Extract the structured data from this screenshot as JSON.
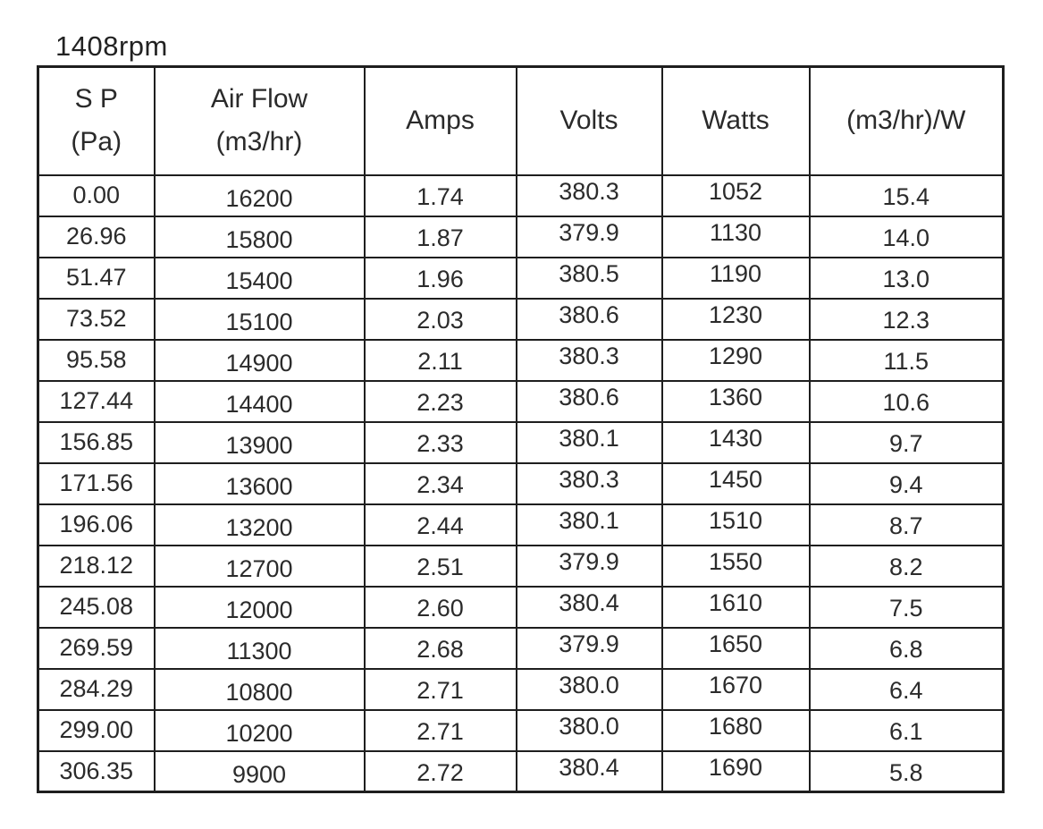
{
  "title": "1408rpm",
  "colors": {
    "background": "#ffffff",
    "border": "#1e1e1e",
    "text": "#2a2a2a"
  },
  "table": {
    "headers": [
      {
        "line1": "S P",
        "line2": "(Pa)"
      },
      {
        "line1": "Air Flow",
        "line2": "(m3/hr)"
      },
      {
        "line1": "Amps",
        "line2": ""
      },
      {
        "line1": "Volts",
        "line2": ""
      },
      {
        "line1": "Watts",
        "line2": ""
      },
      {
        "line1": "(m3/hr)/W",
        "line2": ""
      }
    ],
    "rows": [
      [
        "0.00",
        "16200",
        "1.74",
        "380.3",
        "1052",
        "15.4"
      ],
      [
        "26.96",
        "15800",
        "1.87",
        "379.9",
        "1130",
        "14.0"
      ],
      [
        "51.47",
        "15400",
        "1.96",
        "380.5",
        "1190",
        "13.0"
      ],
      [
        "73.52",
        "15100",
        "2.03",
        "380.6",
        "1230",
        "12.3"
      ],
      [
        "95.58",
        "14900",
        "2.11",
        "380.3",
        "1290",
        "11.5"
      ],
      [
        "127.44",
        "14400",
        "2.23",
        "380.6",
        "1360",
        "10.6"
      ],
      [
        "156.85",
        "13900",
        "2.33",
        "380.1",
        "1430",
        "9.7"
      ],
      [
        "171.56",
        "13600",
        "2.34",
        "380.3",
        "1450",
        "9.4"
      ],
      [
        "196.06",
        "13200",
        "2.44",
        "380.1",
        "1510",
        "8.7"
      ],
      [
        "218.12",
        "12700",
        "2.51",
        "379.9",
        "1550",
        "8.2"
      ],
      [
        "245.08",
        "12000",
        "2.60",
        "380.4",
        "1610",
        "7.5"
      ],
      [
        "269.59",
        "11300",
        "2.68",
        "379.9",
        "1650",
        "6.8"
      ],
      [
        "284.29",
        "10800",
        "2.71",
        "380.0",
        "1670",
        "6.4"
      ],
      [
        "299.00",
        "10200",
        "2.71",
        "380.0",
        "1680",
        "6.1"
      ],
      [
        "306.35",
        "9900",
        "2.72",
        "380.4",
        "1690",
        "5.8"
      ]
    ]
  },
  "chart_data": {
    "type": "table",
    "title": "1408rpm",
    "columns": [
      "S P (Pa)",
      "Air Flow (m3/hr)",
      "Amps",
      "Volts",
      "Watts",
      "(m3/hr)/W"
    ],
    "rows": [
      [
        0.0,
        16200,
        1.74,
        380.3,
        1052,
        15.4
      ],
      [
        26.96,
        15800,
        1.87,
        379.9,
        1130,
        14.0
      ],
      [
        51.47,
        15400,
        1.96,
        380.5,
        1190,
        13.0
      ],
      [
        73.52,
        15100,
        2.03,
        380.6,
        1230,
        12.3
      ],
      [
        95.58,
        14900,
        2.11,
        380.3,
        1290,
        11.5
      ],
      [
        127.44,
        14400,
        2.23,
        380.6,
        1360,
        10.6
      ],
      [
        156.85,
        13900,
        2.33,
        380.1,
        1430,
        9.7
      ],
      [
        171.56,
        13600,
        2.34,
        380.3,
        1450,
        9.4
      ],
      [
        196.06,
        13200,
        2.44,
        380.1,
        1510,
        8.7
      ],
      [
        218.12,
        12700,
        2.51,
        379.9,
        1550,
        8.2
      ],
      [
        245.08,
        12000,
        2.6,
        380.4,
        1610,
        7.5
      ],
      [
        269.59,
        11300,
        2.68,
        379.9,
        1650,
        6.8
      ],
      [
        284.29,
        10800,
        2.71,
        380.0,
        1670,
        6.4
      ],
      [
        299.0,
        10200,
        2.71,
        380.0,
        1680,
        6.1
      ],
      [
        306.35,
        9900,
        2.72,
        380.4,
        1690,
        5.8
      ]
    ]
  }
}
